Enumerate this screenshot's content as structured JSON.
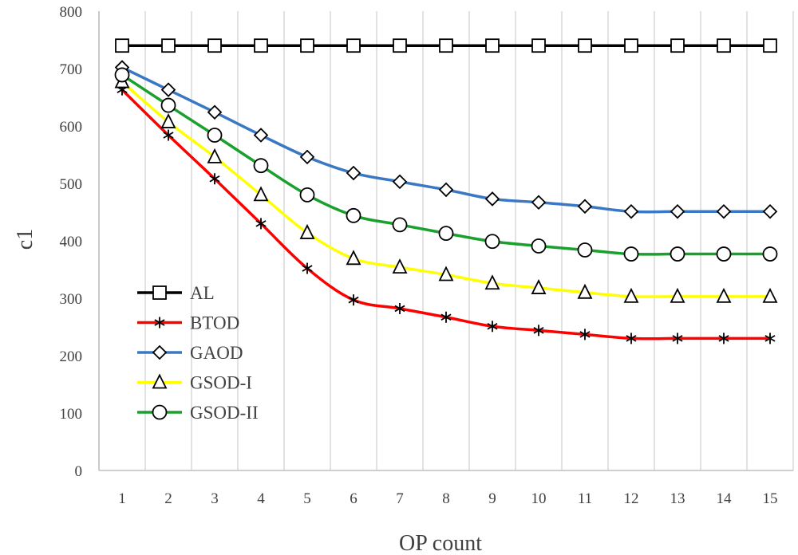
{
  "chart_data": {
    "type": "line",
    "xlabel": "OP count",
    "ylabel": "c1",
    "ylim": [
      0,
      800
    ],
    "yticks": [
      0,
      100,
      200,
      300,
      400,
      500,
      600,
      700,
      800
    ],
    "x": [
      1,
      2,
      3,
      4,
      5,
      6,
      7,
      8,
      9,
      10,
      11,
      12,
      13,
      14,
      15
    ],
    "grid": "vertical",
    "legend_position": "bottom-left",
    "series": [
      {
        "name": "AL",
        "color": "#000000",
        "marker": "square",
        "values": [
          740,
          740,
          740,
          740,
          740,
          740,
          740,
          740,
          740,
          740,
          740,
          740,
          740,
          740,
          740
        ]
      },
      {
        "name": "BTOD",
        "color": "#ff0000",
        "marker": "asterisk",
        "values": [
          663,
          584,
          508,
          430,
          352,
          297,
          282,
          267,
          251,
          244,
          237,
          230,
          230,
          230,
          230
        ]
      },
      {
        "name": "GAOD",
        "color": "#3b78c3",
        "marker": "diamond",
        "values": [
          702,
          663,
          624,
          584,
          546,
          518,
          503,
          489,
          473,
          467,
          460,
          451,
          451,
          451,
          451
        ]
      },
      {
        "name": "GSOD-I",
        "color": "#ffff00",
        "marker": "triangle",
        "values": [
          677,
          607,
          546,
          480,
          414,
          369,
          354,
          341,
          326,
          318,
          310,
          303,
          303,
          303,
          303
        ]
      },
      {
        "name": "GSOD-II",
        "color": "#1aa02d",
        "marker": "circle",
        "values": [
          689,
          636,
          584,
          531,
          480,
          444,
          428,
          413,
          399,
          391,
          384,
          377,
          377,
          377,
          377
        ]
      }
    ]
  }
}
